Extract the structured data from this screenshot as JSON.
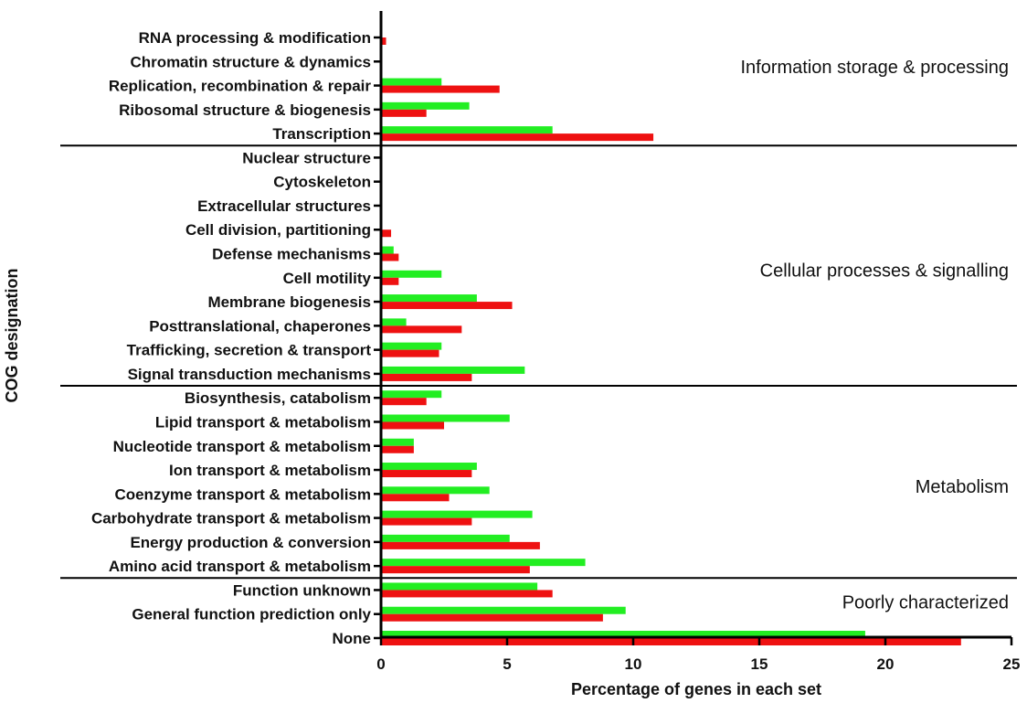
{
  "chart_data": {
    "type": "bar",
    "orientation": "horizontal",
    "xlabel": "Percentage of genes in each set",
    "ylabel": "COG designation",
    "xlim": [
      0,
      25
    ],
    "xticks": [
      "0",
      "5",
      "10",
      "15",
      "20",
      "25"
    ],
    "colors": {
      "green": "#22ee22",
      "red": "#ee1111"
    },
    "categories": [
      "RNA processing & modification",
      "Chromatin structure & dynamics",
      "Replication, recombination & repair",
      "Ribosomal structure & biogenesis",
      "Transcription",
      "Nuclear structure",
      "Cytoskeleton",
      "Extracellular structures",
      "Cell division, partitioning",
      "Defense mechanisms",
      "Cell motility",
      "Membrane biogenesis",
      "Posttranslational, chaperones",
      "Trafficking, secretion & transport",
      "Signal transduction mechanisms",
      "Biosynthesis, catabolism",
      "Lipid transport & metabolism",
      "Nucleotide transport & metabolism",
      "Ion transport & metabolism",
      "Coenzyme transport & metabolism",
      "Carbohydrate transport & metabolism",
      "Energy production & conversion",
      "Amino acid transport & metabolism",
      "Function unknown",
      "General function prediction only",
      "None"
    ],
    "series": [
      {
        "color": "green",
        "values": [
          0,
          0,
          2.4,
          3.5,
          6.8,
          0,
          0,
          0,
          0,
          0.5,
          2.4,
          3.8,
          1.0,
          2.4,
          5.7,
          2.4,
          5.1,
          1.3,
          3.8,
          4.3,
          6.0,
          5.1,
          8.1,
          6.2,
          9.7,
          19.2
        ]
      },
      {
        "color": "red",
        "values": [
          0.2,
          0,
          4.7,
          1.8,
          10.8,
          0,
          0,
          0,
          0.4,
          0.7,
          0.7,
          5.2,
          3.2,
          2.3,
          3.6,
          1.8,
          2.5,
          1.3,
          3.6,
          2.7,
          3.6,
          6.3,
          5.9,
          6.8,
          8.8,
          23.0
        ]
      }
    ],
    "groups": [
      {
        "label": "Information  storage & processing",
        "start": 0,
        "end": 4
      },
      {
        "label": "Cellular processes & signalling",
        "start": 5,
        "end": 14
      },
      {
        "label": "Metabolism",
        "start": 15,
        "end": 22
      },
      {
        "label": "Poorly characterized",
        "start": 23,
        "end": 25
      }
    ]
  }
}
